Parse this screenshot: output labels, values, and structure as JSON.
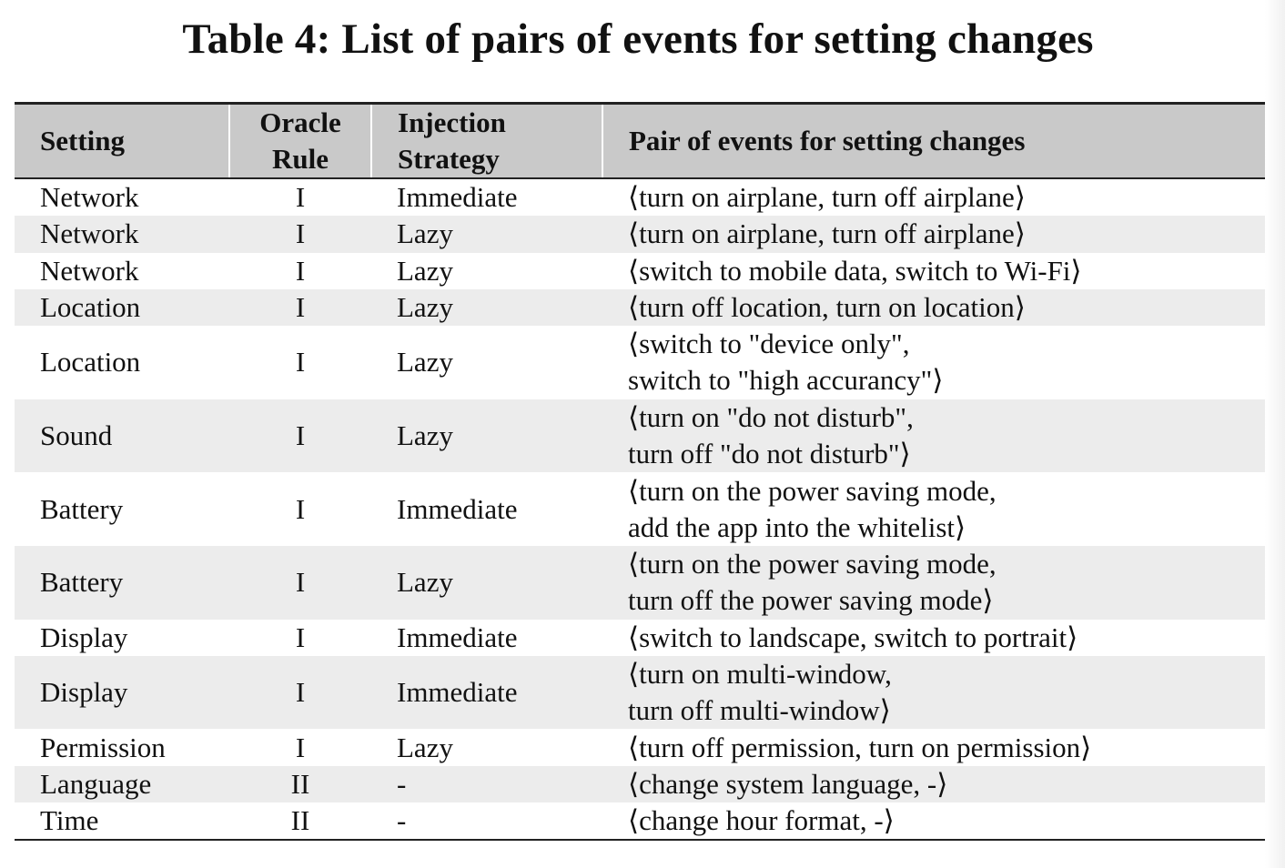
{
  "caption": "Table 4: List of pairs of events for setting changes",
  "table": {
    "headers": {
      "setting": "Setting",
      "oracle_rule": [
        "Oracle",
        "Rule"
      ],
      "injection_strategy": [
        "Injection",
        "Strategy"
      ],
      "pair": "Pair of events for setting changes"
    },
    "rows": [
      {
        "setting": "Network",
        "rule": "I",
        "strategy": "Immediate",
        "pair": [
          "⟨turn on airplane, turn off airplane⟩"
        ]
      },
      {
        "setting": "Network",
        "rule": "I",
        "strategy": "Lazy",
        "pair": [
          "⟨turn on airplane, turn off airplane⟩"
        ]
      },
      {
        "setting": "Network",
        "rule": "I",
        "strategy": "Lazy",
        "pair": [
          "⟨switch to mobile data, switch to Wi-Fi⟩"
        ]
      },
      {
        "setting": "Location",
        "rule": "I",
        "strategy": "Lazy",
        "pair": [
          "⟨turn off location, turn on location⟩"
        ]
      },
      {
        "setting": "Location",
        "rule": "I",
        "strategy": "Lazy",
        "pair": [
          "⟨switch to \"device only\",",
          "switch to \"high accurancy\"⟩"
        ]
      },
      {
        "setting": "Sound",
        "rule": "I",
        "strategy": "Lazy",
        "pair": [
          "⟨turn on \"do not disturb\",",
          "turn off \"do not disturb\"⟩"
        ]
      },
      {
        "setting": "Battery",
        "rule": "I",
        "strategy": "Immediate",
        "pair": [
          "⟨turn on the power saving mode,",
          "add the app into the whitelist⟩"
        ]
      },
      {
        "setting": "Battery",
        "rule": "I",
        "strategy": "Lazy",
        "pair": [
          "⟨turn on the power saving mode,",
          "turn off the power saving mode⟩"
        ]
      },
      {
        "setting": "Display",
        "rule": "I",
        "strategy": "Immediate",
        "pair": [
          "⟨switch to landscape, switch to portrait⟩"
        ]
      },
      {
        "setting": "Display",
        "rule": "I",
        "strategy": "Immediate",
        "pair": [
          "⟨turn on multi-window,",
          "turn off multi-window⟩"
        ]
      },
      {
        "setting": "Permission",
        "rule": "I",
        "strategy": "Lazy",
        "pair": [
          "⟨turn off permission, turn on permission⟩"
        ]
      },
      {
        "setting": "Language",
        "rule": "II",
        "strategy": "-",
        "pair": [
          "⟨change system language, -⟩"
        ]
      },
      {
        "setting": "Time",
        "rule": "II",
        "strategy": "-",
        "pair": [
          "⟨change hour format, -⟩"
        ]
      }
    ]
  }
}
